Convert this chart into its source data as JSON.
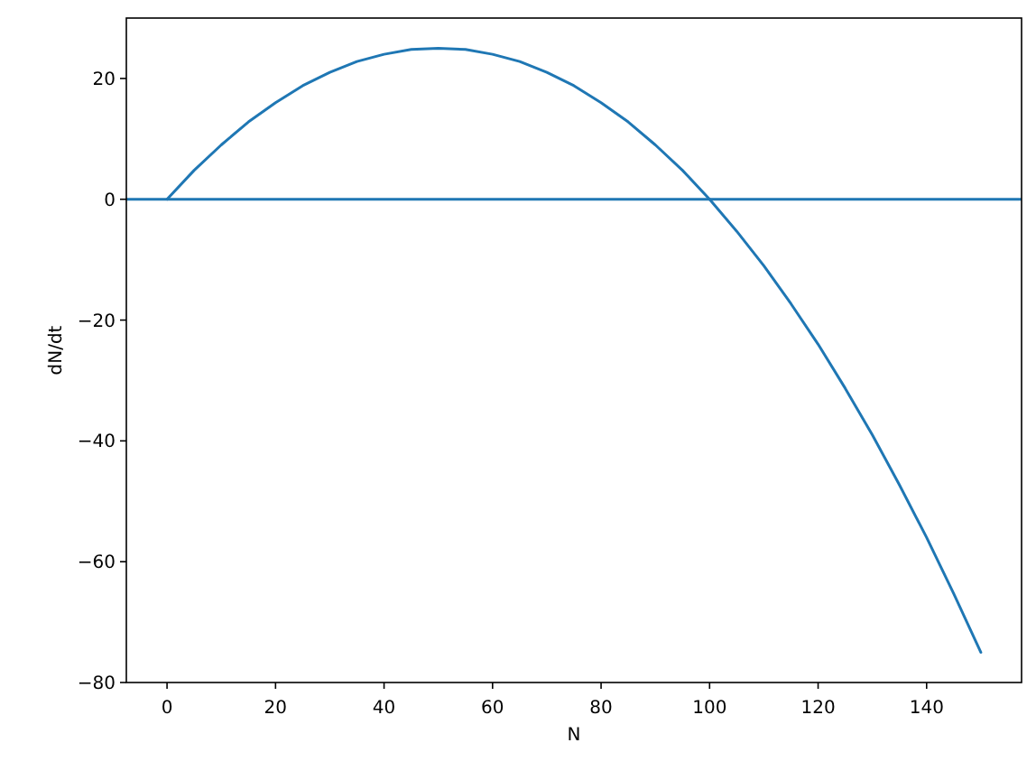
{
  "chart_data": {
    "type": "line",
    "xlabel": "N",
    "ylabel": "dN/dt",
    "x": [
      0,
      5,
      10,
      15,
      20,
      25,
      30,
      35,
      40,
      45,
      50,
      55,
      60,
      65,
      70,
      75,
      80,
      85,
      90,
      95,
      100,
      105,
      110,
      115,
      120,
      125,
      130,
      135,
      140,
      145,
      150
    ],
    "series": [
      {
        "color": "#1f77b4",
        "values": [
          0,
          4.8,
          9,
          12.8,
          16,
          18.8,
          21,
          22.8,
          24,
          24.8,
          25,
          24.8,
          24,
          22.8,
          21,
          18.8,
          16,
          12.8,
          9,
          4.8,
          0,
          -5.3,
          -11,
          -17.3,
          -24,
          -31.3,
          -39,
          -47.3,
          -56,
          -65.3,
          -75
        ]
      }
    ],
    "xlim": [
      -7.5,
      157.5
    ],
    "ylim": [
      -80,
      30
    ],
    "xticks": [
      0,
      20,
      40,
      60,
      80,
      100,
      120,
      140
    ],
    "yticks": [
      -80,
      -60,
      -40,
      -20,
      0,
      20
    ],
    "ref_lines": [
      {
        "axis": "y",
        "value": 0,
        "color": "#1f77b4"
      }
    ],
    "grid": false
  }
}
